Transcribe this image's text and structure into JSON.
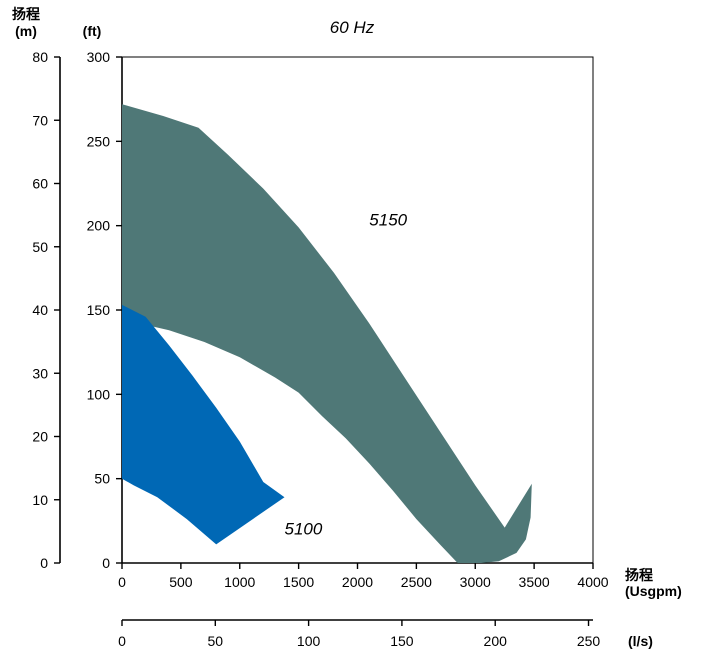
{
  "chart_data": {
    "type": "area",
    "title": "60 Hz",
    "x_axis": {
      "label_line1": "扬程",
      "label_line2": "(Usgpm)",
      "range": [
        0,
        4000
      ],
      "ticks": [
        0,
        500,
        1000,
        1500,
        2000,
        2500,
        3000,
        3500,
        4000
      ]
    },
    "x2_axis": {
      "label": "(l/s)",
      "range": [
        0,
        252.4
      ],
      "ticks": [
        0,
        50,
        100,
        150,
        200,
        250
      ]
    },
    "y_left_axis": {
      "label_line1": "扬程",
      "label_line2": "(m)",
      "range": [
        0,
        80
      ],
      "ticks": [
        0,
        10,
        20,
        30,
        40,
        50,
        60,
        70,
        80
      ]
    },
    "y_right_axis": {
      "label": "(ft)",
      "range": [
        0,
        300
      ],
      "ticks": [
        0,
        50,
        100,
        150,
        200,
        250,
        300
      ]
    },
    "series": [
      {
        "name": "5150",
        "color": "#4f7877",
        "label_at": [
          2100,
          200
        ],
        "outline_ft": [
          [
            0,
            272
          ],
          [
            350,
            265
          ],
          [
            650,
            258
          ],
          [
            900,
            242
          ],
          [
            1200,
            222
          ],
          [
            1500,
            199
          ],
          [
            1800,
            172
          ],
          [
            2100,
            142
          ],
          [
            2400,
            110
          ],
          [
            2700,
            78
          ],
          [
            3000,
            46
          ],
          [
            3250,
            21
          ],
          [
            3480,
            47
          ],
          [
            3470,
            27
          ],
          [
            3430,
            14
          ],
          [
            3350,
            6
          ],
          [
            3200,
            1
          ],
          [
            3050,
            0
          ],
          [
            2850,
            0
          ],
          [
            2700,
            11
          ],
          [
            2500,
            26
          ],
          [
            2300,
            43
          ],
          [
            2100,
            59
          ],
          [
            1900,
            74
          ],
          [
            1700,
            87
          ],
          [
            1500,
            101
          ],
          [
            1300,
            110
          ],
          [
            1000,
            122
          ],
          [
            700,
            131
          ],
          [
            400,
            138
          ],
          [
            150,
            142
          ],
          [
            0,
            143
          ]
        ]
      },
      {
        "name": "5100",
        "color": "#0068b5",
        "label_at": [
          1380,
          17
        ],
        "outline_ft": [
          [
            0,
            153
          ],
          [
            200,
            146
          ],
          [
            400,
            129
          ],
          [
            600,
            111
          ],
          [
            800,
            92
          ],
          [
            1000,
            72
          ],
          [
            1200,
            48
          ],
          [
            1380,
            39
          ],
          [
            800,
            11
          ],
          [
            550,
            26
          ],
          [
            300,
            39
          ],
          [
            100,
            46
          ],
          [
            0,
            50
          ]
        ]
      }
    ]
  }
}
